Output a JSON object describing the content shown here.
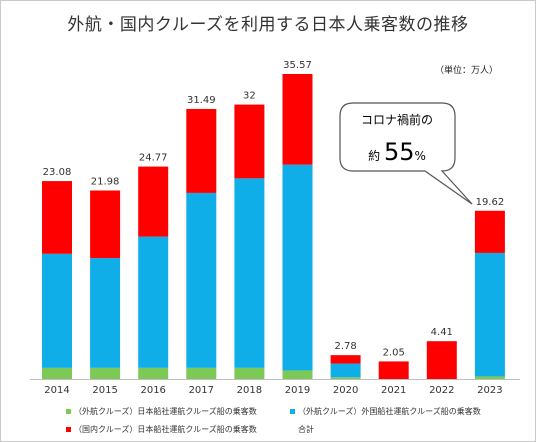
{
  "chart_data": {
    "type": "bar",
    "stacked": true,
    "title": "外航・国内クルーズを利用する日本人乗客数の推移",
    "unit_label": "（単位：万人）",
    "categories": [
      "2014",
      "2015",
      "2016",
      "2017",
      "2018",
      "2019",
      "2020",
      "2021",
      "2022",
      "2023"
    ],
    "series": [
      {
        "name": "（外航クルーズ）日本船社運航クルーズ船の乗客数",
        "color": "#7cc957",
        "values": [
          1.3,
          1.3,
          1.3,
          1.3,
          1.3,
          1.0,
          0.2,
          0.0,
          0.0,
          0.3
        ]
      },
      {
        "name": "（外航クルーズ）外国船社運航クルーズ船の乗客数",
        "color": "#10aee8",
        "values": [
          13.3,
          12.8,
          15.3,
          20.4,
          22.1,
          24.0,
          1.6,
          0.0,
          0.0,
          14.4
        ]
      },
      {
        "name": "（国内クルーズ）日本船社運航クルーズ船の乗客数",
        "color": "#ff0000",
        "values": [
          8.48,
          7.88,
          8.17,
          9.79,
          8.6,
          10.57,
          0.98,
          2.05,
          4.41,
          4.92
        ]
      }
    ],
    "totals_name": "合計",
    "totals": [
      "23.08",
      "21.98",
      "24.77",
      "31.49",
      "32",
      "35.57",
      "2.78",
      "2.05",
      "4.41",
      "19.62"
    ],
    "ylim": [
      0,
      36.5
    ],
    "grid": false,
    "legend_position": "bottom",
    "callout": {
      "line1": "コロナ禍前の",
      "prefix": "約",
      "value": "55",
      "suffix": "%"
    }
  }
}
